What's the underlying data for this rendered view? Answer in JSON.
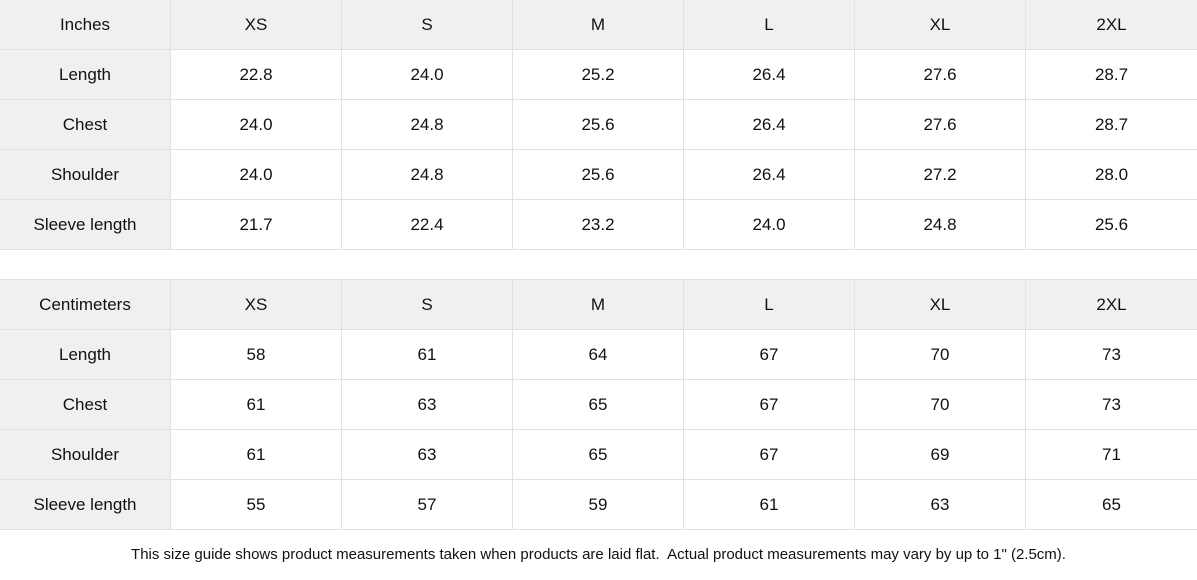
{
  "colors": {
    "header_bg": "#f0f0f0",
    "border": "#e1e1e1",
    "cell_bg": "#ffffff",
    "text": "#111111"
  },
  "tables": [
    {
      "unit_label": "Inches",
      "size_headers": [
        "XS",
        "S",
        "M",
        "L",
        "XL",
        "2XL"
      ],
      "rows": [
        {
          "label": "Length",
          "values": [
            "22.8",
            "24.0",
            "25.2",
            "26.4",
            "27.6",
            "28.7"
          ]
        },
        {
          "label": "Chest",
          "values": [
            "24.0",
            "24.8",
            "25.6",
            "26.4",
            "27.6",
            "28.7"
          ]
        },
        {
          "label": "Shoulder",
          "values": [
            "24.0",
            "24.8",
            "25.6",
            "26.4",
            "27.2",
            "28.0"
          ]
        },
        {
          "label": "Sleeve length",
          "values": [
            "21.7",
            "22.4",
            "23.2",
            "24.0",
            "24.8",
            "25.6"
          ]
        }
      ]
    },
    {
      "unit_label": "Centimeters",
      "size_headers": [
        "XS",
        "S",
        "M",
        "L",
        "XL",
        "2XL"
      ],
      "rows": [
        {
          "label": "Length",
          "values": [
            "58",
            "61",
            "64",
            "67",
            "70",
            "73"
          ]
        },
        {
          "label": "Chest",
          "values": [
            "61",
            "63",
            "65",
            "67",
            "70",
            "73"
          ]
        },
        {
          "label": "Shoulder",
          "values": [
            "61",
            "63",
            "65",
            "67",
            "69",
            "71"
          ]
        },
        {
          "label": "Sleeve length",
          "values": [
            "55",
            "57",
            "59",
            "61",
            "63",
            "65"
          ]
        }
      ]
    }
  ],
  "footer": {
    "note": "This size guide shows product measurements taken when products are laid flat.  Actual product measurements may vary by up to 1\" (2.5cm)."
  }
}
